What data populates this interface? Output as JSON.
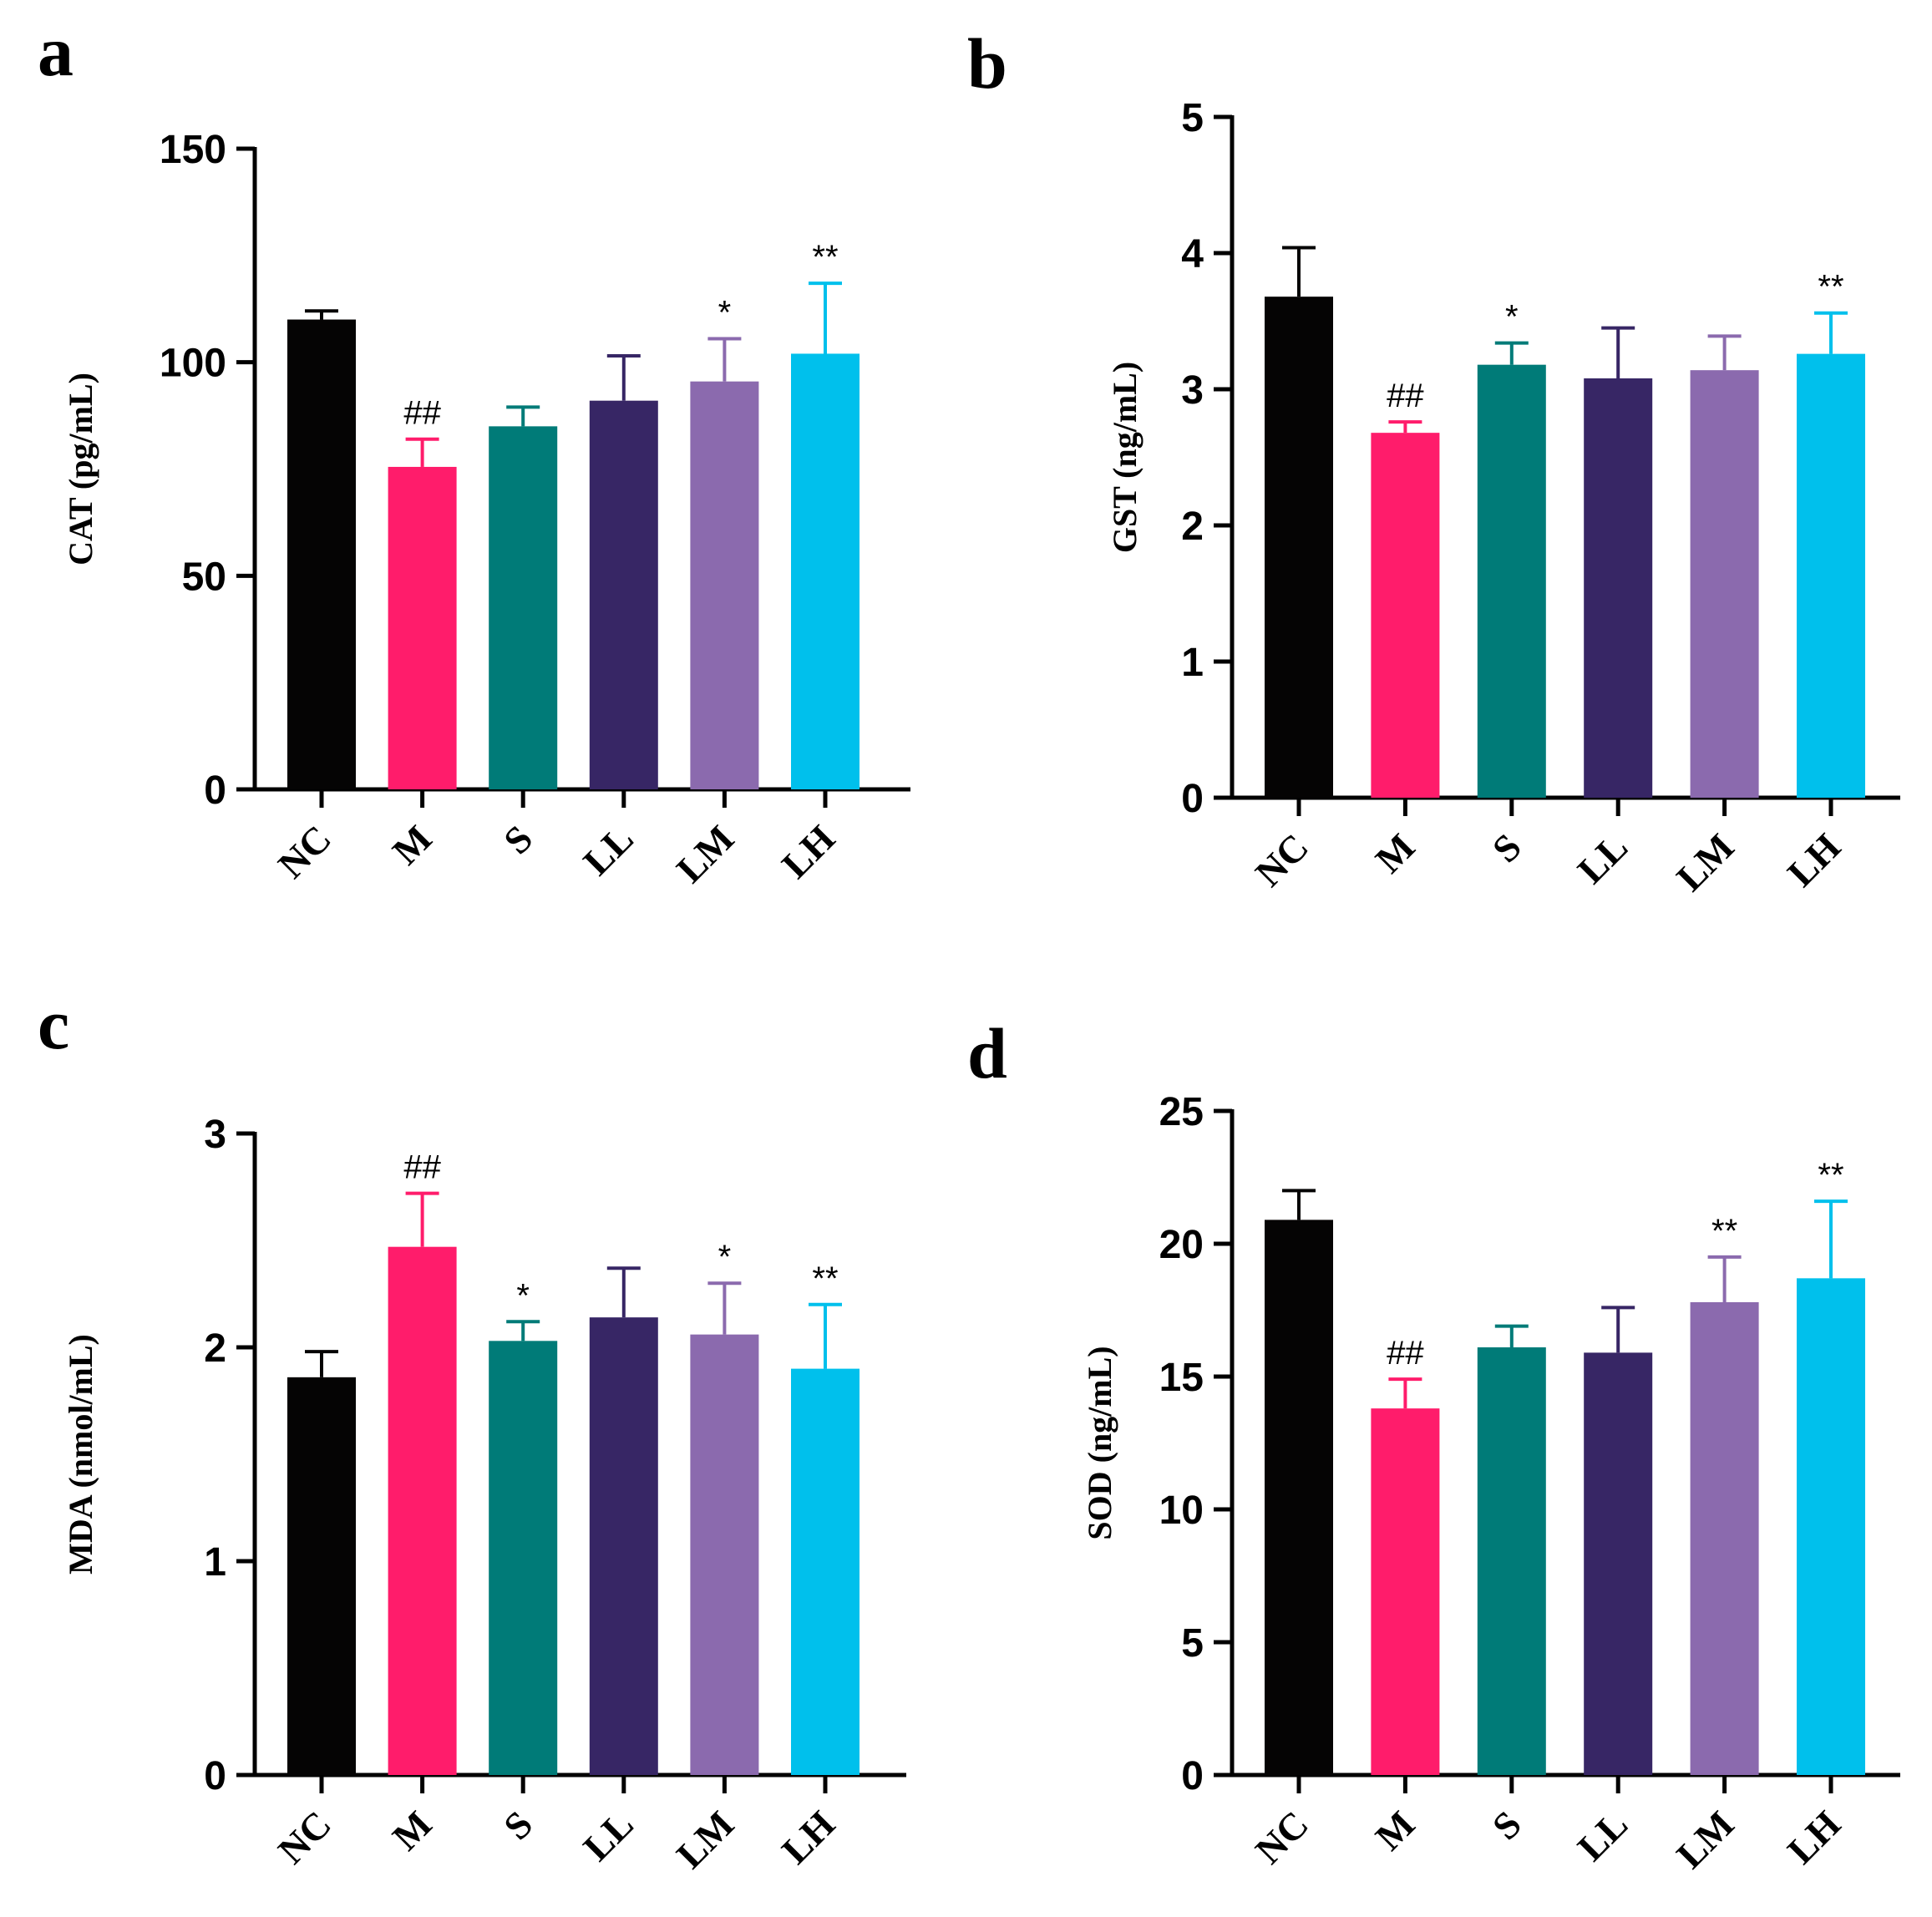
{
  "colors": {
    "NC": "#050404",
    "M": "#ff1c6b",
    "S": "#007b78",
    "LL": "#372665",
    "LM": "#8b6aae",
    "LH": "#00c0ec"
  },
  "chart_data": [
    {
      "panel": "a",
      "type": "bar",
      "categories": [
        "NC",
        "M",
        "S",
        "LL",
        "LM",
        "LH"
      ],
      "values": [
        110,
        75.5,
        85,
        91,
        95.5,
        102
      ],
      "errors": [
        2,
        6.5,
        4.5,
        10.5,
        10,
        16.5
      ],
      "annotations": [
        "",
        "##",
        "",
        "",
        "*",
        "**"
      ],
      "ylabel": "CAT (pg/mL)",
      "ylim": [
        0,
        150
      ],
      "yticks": [
        0,
        50,
        100,
        150
      ],
      "ytick_labels": [
        "0",
        "50",
        "100",
        "150"
      ]
    },
    {
      "panel": "b",
      "type": "bar",
      "categories": [
        "NC",
        "M",
        "S",
        "LL",
        "LM",
        "LH"
      ],
      "values": [
        3.68,
        2.68,
        3.18,
        3.08,
        3.14,
        3.26
      ],
      "errors": [
        0.36,
        0.08,
        0.16,
        0.37,
        0.25,
        0.3
      ],
      "annotations": [
        "",
        "##",
        "*",
        "",
        "",
        "**"
      ],
      "ylabel": "GST (ng/mL)",
      "ylim": [
        0,
        5
      ],
      "yticks": [
        0,
        1,
        2,
        3,
        4,
        5
      ],
      "ytick_labels": [
        "0",
        "1",
        "2",
        "3",
        "4",
        "5"
      ]
    },
    {
      "panel": "c",
      "type": "bar",
      "categories": [
        "NC",
        "M",
        "S",
        "LL",
        "LM",
        "LH"
      ],
      "values": [
        1.86,
        2.47,
        2.03,
        2.14,
        2.06,
        1.9
      ],
      "errors": [
        0.12,
        0.25,
        0.09,
        0.23,
        0.24,
        0.3
      ],
      "annotations": [
        "",
        "##",
        "*",
        "",
        "*",
        "**"
      ],
      "ylabel": "MDA (nmol/mL)",
      "ylim": [
        0,
        3
      ],
      "yticks": [
        0,
        1,
        2,
        3
      ],
      "ytick_labels": [
        "0",
        "1",
        "2",
        "3"
      ]
    },
    {
      "panel": "d",
      "type": "bar",
      "categories": [
        "NC",
        "M",
        "S",
        "LL",
        "LM",
        "LH"
      ],
      "values": [
        20.9,
        13.8,
        16.1,
        15.9,
        17.8,
        18.7
      ],
      "errors": [
        1.1,
        1.1,
        0.8,
        1.7,
        1.7,
        2.9
      ],
      "annotations": [
        "",
        "##",
        "",
        "",
        "**",
        "**"
      ],
      "ylabel": "SOD (ng/mL)",
      "ylim": [
        0,
        25
      ],
      "yticks": [
        0,
        5,
        10,
        15,
        20,
        25
      ],
      "ytick_labels": [
        "0",
        "5",
        "10",
        "15",
        "20",
        "25"
      ]
    }
  ]
}
